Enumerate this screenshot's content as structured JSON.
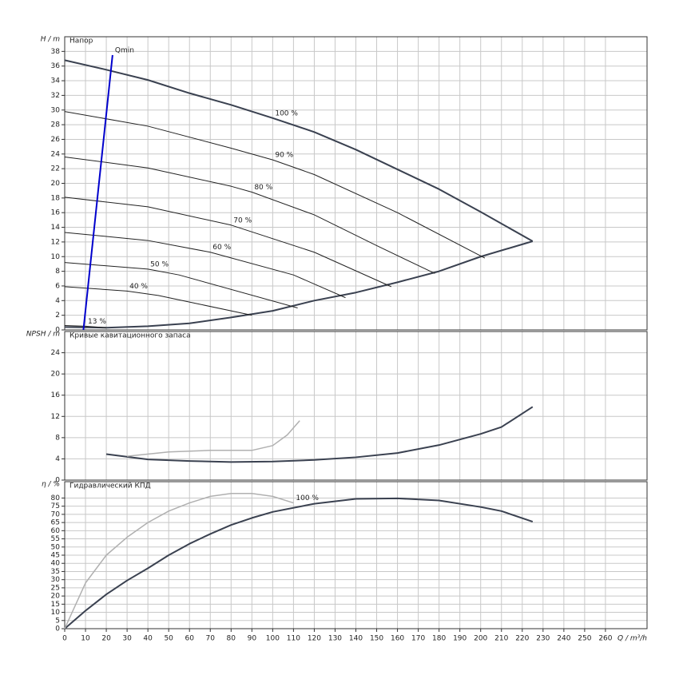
{
  "chart_data": [
    {
      "type": "line",
      "title": "Напор",
      "ylabel": "H / m",
      "xlim": [
        0,
        280
      ],
      "ylim": [
        0,
        40
      ],
      "yticks": [
        0,
        2,
        4,
        6,
        8,
        10,
        12,
        14,
        16,
        18,
        20,
        22,
        24,
        26,
        28,
        30,
        32,
        34,
        36,
        38
      ],
      "grid": true,
      "series": [
        {
          "name": "100 %",
          "color": "#3a4150",
          "linewidth": 2,
          "label_position": "middle",
          "x": [
            0,
            20,
            40,
            60,
            80,
            100,
            120,
            140,
            160,
            180,
            200,
            225
          ],
          "values": [
            36.8,
            35.5,
            34.1,
            32.3,
            30.7,
            28.9,
            27.0,
            24.6,
            21.9,
            19.2,
            16.1,
            12.1
          ]
        },
        {
          "color": "#3a4150",
          "linewidth": 2,
          "x": [
            0,
            20,
            40,
            60,
            80,
            100,
            120,
            140,
            160,
            180,
            200,
            225
          ],
          "values": [
            0.4,
            0.3,
            0.5,
            0.9,
            1.7,
            2.6,
            4.0,
            5.1,
            6.5,
            8.0,
            10.0,
            12.1
          ]
        },
        {
          "name": "90 %",
          "color": "#222222",
          "linewidth": 1,
          "label_position": "middle",
          "x": [
            0,
            40,
            80,
            100,
            120,
            160,
            202
          ],
          "values": [
            29.8,
            27.8,
            24.8,
            23.2,
            21.2,
            16.0,
            9.8
          ]
        },
        {
          "name": "80 %",
          "color": "#222222",
          "linewidth": 1,
          "label_position": "middle",
          "x": [
            0,
            40,
            80,
            90,
            120,
            150,
            178
          ],
          "values": [
            23.6,
            22.1,
            19.6,
            18.8,
            15.7,
            11.5,
            7.7
          ]
        },
        {
          "name": "70 %",
          "color": "#222222",
          "linewidth": 1,
          "label_position": "middle",
          "x": [
            0,
            40,
            80,
            120,
            157
          ],
          "values": [
            18.1,
            16.8,
            14.3,
            10.6,
            5.9
          ]
        },
        {
          "name": "60 %",
          "color": "#222222",
          "linewidth": 1,
          "label_position": "middle",
          "x": [
            0,
            40,
            70,
            110,
            135
          ],
          "values": [
            13.3,
            12.2,
            10.6,
            7.5,
            4.4
          ]
        },
        {
          "name": "50 %",
          "color": "#222222",
          "linewidth": 1,
          "label_position": "middle",
          "x": [
            0,
            40,
            55,
            112
          ],
          "values": [
            9.2,
            8.3,
            7.5,
            3.0
          ]
        },
        {
          "name": "40 %",
          "color": "#222222",
          "linewidth": 1,
          "label_position": "middle",
          "x": [
            0,
            30,
            45,
            90
          ],
          "values": [
            5.9,
            5.3,
            4.7,
            2.0
          ]
        },
        {
          "name": "13 %",
          "color": "#222222",
          "linewidth": 1,
          "label_position": "middle",
          "x": [
            0,
            10,
            20
          ],
          "values": [
            0.6,
            0.5,
            0.3
          ]
        },
        {
          "name": "Qmin",
          "color": "#0000cc",
          "linewidth": 2,
          "label_position": "end",
          "x": [
            9,
            23
          ],
          "values": [
            0,
            37.5
          ]
        }
      ]
    },
    {
      "type": "line",
      "title": "Кривые кавитационного запаса",
      "ylabel": "NPSH / m",
      "xlim": [
        0,
        280
      ],
      "ylim": [
        0,
        28
      ],
      "yticks": [
        0,
        4,
        8,
        12,
        16,
        20,
        24
      ],
      "grid": true,
      "series": [
        {
          "color": "#3a4150",
          "linewidth": 2,
          "x": [
            20,
            40,
            60,
            80,
            100,
            120,
            140,
            160,
            180,
            200,
            210,
            225
          ],
          "values": [
            4.9,
            3.9,
            3.6,
            3.4,
            3.5,
            3.8,
            4.3,
            5.1,
            6.6,
            8.7,
            10.0,
            13.8
          ]
        },
        {
          "color": "#b0b0b0",
          "linewidth": 1.5,
          "x": [
            30,
            50,
            70,
            90,
            100,
            107,
            113
          ],
          "values": [
            4.5,
            5.3,
            5.6,
            5.6,
            6.5,
            8.5,
            11.2
          ]
        }
      ]
    },
    {
      "type": "line",
      "title": "Гидравлический КПД",
      "ylabel": "η / %",
      "xlim": [
        0,
        280
      ],
      "ylim": [
        0,
        90
      ],
      "yticks": [
        0,
        5,
        10,
        15,
        20,
        25,
        30,
        35,
        40,
        45,
        50,
        55,
        60,
        65,
        70,
        75,
        80
      ],
      "grid": true,
      "xticks": [
        0,
        10,
        20,
        30,
        40,
        50,
        60,
        70,
        80,
        90,
        100,
        110,
        120,
        130,
        140,
        150,
        160,
        170,
        180,
        190,
        200,
        210,
        220,
        230,
        240,
        250,
        260
      ],
      "xlabel": "Q / m³/h",
      "series": [
        {
          "color": "#3a4150",
          "linewidth": 2,
          "x": [
            0,
            10,
            20,
            30,
            40,
            50,
            60,
            70,
            80,
            90,
            100,
            120,
            140,
            160,
            180,
            200,
            210,
            225
          ],
          "values": [
            0,
            11,
            21,
            29.5,
            37,
            45,
            52,
            58,
            63.5,
            67.8,
            71.5,
            76.5,
            79.5,
            79.8,
            78.5,
            74.5,
            72,
            65.5
          ]
        },
        {
          "name": "100 %",
          "color": "#b0b0b0",
          "linewidth": 1.5,
          "label_position": "end",
          "x": [
            0,
            10,
            20,
            30,
            40,
            50,
            60,
            70,
            80,
            90,
            100,
            110
          ],
          "values": [
            0,
            28,
            45,
            56,
            65,
            72,
            77,
            81,
            82.8,
            82.8,
            81,
            77
          ]
        }
      ]
    }
  ]
}
